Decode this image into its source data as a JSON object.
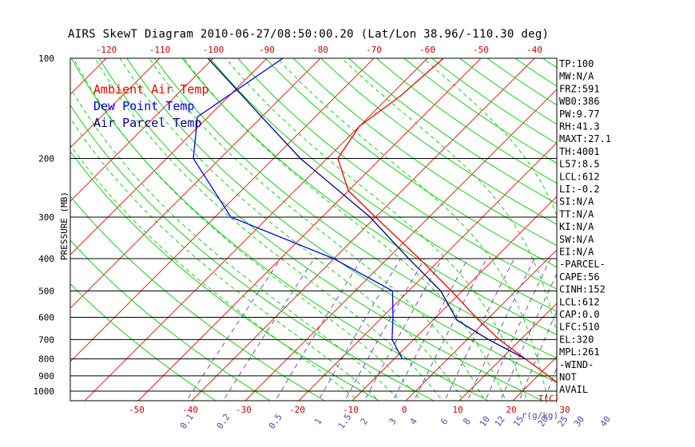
{
  "title": "AIRS SkewT Diagram 2010-06-27/08:50:00.20 (Lat/Lon 38.96/-110.30 deg)",
  "chart_data": {
    "type": "line",
    "title": "AIRS SkewT Diagram 2010-06-27/08:50:00.20 (Lat/Lon 38.96/-110.30 deg)",
    "ylabel": "PRESSURE (MB)",
    "y_scale": "log",
    "ylim": [
      1000,
      100
    ],
    "y_ticks": [
      "100",
      "200",
      "300",
      "400",
      "500",
      "600",
      "700",
      "800",
      "900",
      "1000"
    ],
    "y_tick_values": [
      100,
      200,
      300,
      400,
      500,
      600,
      700,
      800,
      900,
      1000
    ],
    "top_temp_ticks": [
      "-120",
      "-110",
      "-100",
      "-90",
      "-80",
      "-70",
      "-60",
      "-50",
      "-40"
    ],
    "top_temp_values": [
      -120,
      -110,
      -100,
      -90,
      -80,
      -70,
      -60,
      -50,
      -40
    ],
    "bottom_temp_ticks": [
      "-50",
      "-40",
      "-30",
      "-20",
      "-10",
      "0",
      "10",
      "20",
      "30"
    ],
    "bottom_temp_values": [
      -50,
      -40,
      -30,
      -20,
      -10,
      0,
      10,
      20,
      30
    ],
    "bottom_temp_unit": "T(C)",
    "mixing_ratio_ticks": [
      "0.1",
      "0.2",
      "0.5",
      "1",
      "1.5",
      "2",
      "3",
      "4",
      "6",
      "8",
      "10",
      "12",
      "15",
      "20",
      "25",
      "30",
      "40"
    ],
    "mixing_ratio_unit": "r(g/kg)",
    "legend": [
      "Ambient Air Temp",
      "Dew Point Temp",
      "Air Parcel Temp"
    ],
    "legend_colors": [
      "#ff0000",
      "#0000ff",
      "#000080"
    ],
    "legend_placement": "top-left",
    "grid_colors": {
      "isotherm": "#ff0000",
      "dry_adiabat": "#00cc00",
      "moist_adiabat": "#00cc00",
      "mixing_ratio": "#6040b0",
      "isobar": "#000000"
    },
    "series": [
      {
        "name": "Ambient Air Temp",
        "color": "#ff0000",
        "points": [
          {
            "p": 1000,
            "t": 28.5
          },
          {
            "p": 900,
            "t": 22.0
          },
          {
            "p": 800,
            "t": 14.5
          },
          {
            "p": 700,
            "t": 6.0
          },
          {
            "p": 600,
            "t": -2.5
          },
          {
            "p": 500,
            "t": -12.0
          },
          {
            "p": 400,
            "t": -24.0
          },
          {
            "p": 300,
            "t": -40.0
          },
          {
            "p": 250,
            "t": -50.0
          },
          {
            "p": 200,
            "t": -58.0
          },
          {
            "p": 160,
            "t": -60.0
          },
          {
            "p": 130,
            "t": -58.0
          },
          {
            "p": 100,
            "t": -57.0
          }
        ]
      },
      {
        "name": "Dew Point Temp",
        "color": "#0000ff",
        "points": [
          {
            "p": 800,
            "t": -8.5
          },
          {
            "p": 700,
            "t": -14.0
          },
          {
            "p": 600,
            "t": -18.0
          },
          {
            "p": 500,
            "t": -23.0
          },
          {
            "p": 400,
            "t": -40.0
          },
          {
            "p": 300,
            "t": -67.0
          },
          {
            "p": 200,
            "t": -85.0
          },
          {
            "p": 150,
            "t": -92.0
          },
          {
            "p": 100,
            "t": -87.0
          }
        ]
      },
      {
        "name": "Air Parcel Temp",
        "color": "#000080",
        "points": [
          {
            "p": 800,
            "t": 14.5
          },
          {
            "p": 700,
            "t": 4.0
          },
          {
            "p": 612,
            "t": -5.5
          },
          {
            "p": 500,
            "t": -14.0
          },
          {
            "p": 400,
            "t": -26.0
          },
          {
            "p": 300,
            "t": -41.0
          },
          {
            "p": 200,
            "t": -65.0
          },
          {
            "p": 150,
            "t": -80.0
          },
          {
            "p": 100,
            "t": -101.0
          }
        ]
      }
    ]
  },
  "indices": [
    "TP:100",
    "MW:N/A",
    "FRZ:591",
    "WB0:386",
    "PW:9.77",
    "RH:41.3",
    "MAXT:27.1",
    "TH:4001",
    "L57:8.5",
    "LCL:612",
    "LI:-0.2",
    "SI:N/A",
    "TT:N/A",
    "KI:N/A",
    "SW:N/A",
    "EI:N/A",
    "-PARCEL-",
    "CAPE:56",
    "CINH:152",
    "LCL:612",
    "CAP:0.0",
    "LFC:510",
    "EL:320",
    "MPL:261",
    "-WIND-",
    "NOT",
    "AVAIL"
  ]
}
